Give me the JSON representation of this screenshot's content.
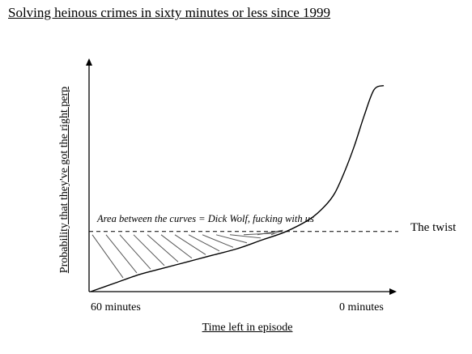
{
  "chart_data": {
    "type": "line",
    "title": "Solving heinous crimes in sixty minutes or less since 1999",
    "xlabel": "Time left in episode",
    "ylabel": "Probability that they've got the right perp",
    "x_tick_labels": [
      "60 minutes",
      "0 minutes"
    ],
    "xlim": [
      60,
      0
    ],
    "ylim": [
      0,
      1
    ],
    "series": [
      {
        "type": "curve",
        "x": [
          60,
          55,
          50,
          45,
          40,
          35,
          30,
          25,
          20,
          15,
          12,
          10,
          8,
          6,
          4,
          2,
          0
        ],
        "y": [
          0.0,
          0.04,
          0.08,
          0.11,
          0.14,
          0.17,
          0.2,
          0.24,
          0.28,
          0.34,
          0.4,
          0.46,
          0.56,
          0.68,
          0.82,
          0.94,
          0.96
        ]
      },
      {
        "type": "dashed-horizontal",
        "y": 0.28
      }
    ],
    "annotations": {
      "dashed_line_label": "The twist",
      "area_label": "Area between the curves = Dick Wolf, fucking with us"
    },
    "grid": false,
    "legend": "none",
    "shaded_region": "hatched area between curve and dashed line"
  }
}
